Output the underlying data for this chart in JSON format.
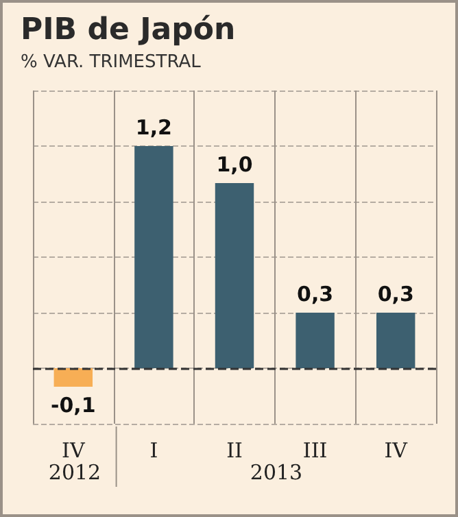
{
  "chart_data": {
    "type": "bar",
    "title": "PIB de Japón",
    "subtitle": "% VAR. TRIMESTRAL",
    "categories": [
      "IV",
      "I",
      "II",
      "III",
      "IV"
    ],
    "values": [
      -0.1,
      1.2,
      1.0,
      0.3,
      0.3
    ],
    "colors": [
      "#f7ae55",
      "#3d6070",
      "#3d6070",
      "#3d6070",
      "#3d6070"
    ],
    "ylim": [
      -0.3,
      1.5
    ],
    "yticks": [
      {
        "value": -0.3,
        "label": null
      },
      {
        "value": 0,
        "label": null
      },
      {
        "value": 0.3,
        "label": null
      },
      {
        "value": 0.6,
        "label": null
      },
      {
        "value": 0.9,
        "label": null
      },
      {
        "value": 1.2,
        "label": null
      },
      {
        "value": 1.5,
        "label": null
      }
    ],
    "tick_labels": "x",
    "grid": true,
    "value_labels": [
      "-0,1",
      "1,2",
      "1,0",
      "0,3",
      "0,3"
    ],
    "ref_lines": [
      {
        "axis": "y",
        "value": 0,
        "color": "#333333",
        "line_style": "dashed"
      }
    ],
    "annotations": [
      "2012",
      "2013"
    ]
  }
}
